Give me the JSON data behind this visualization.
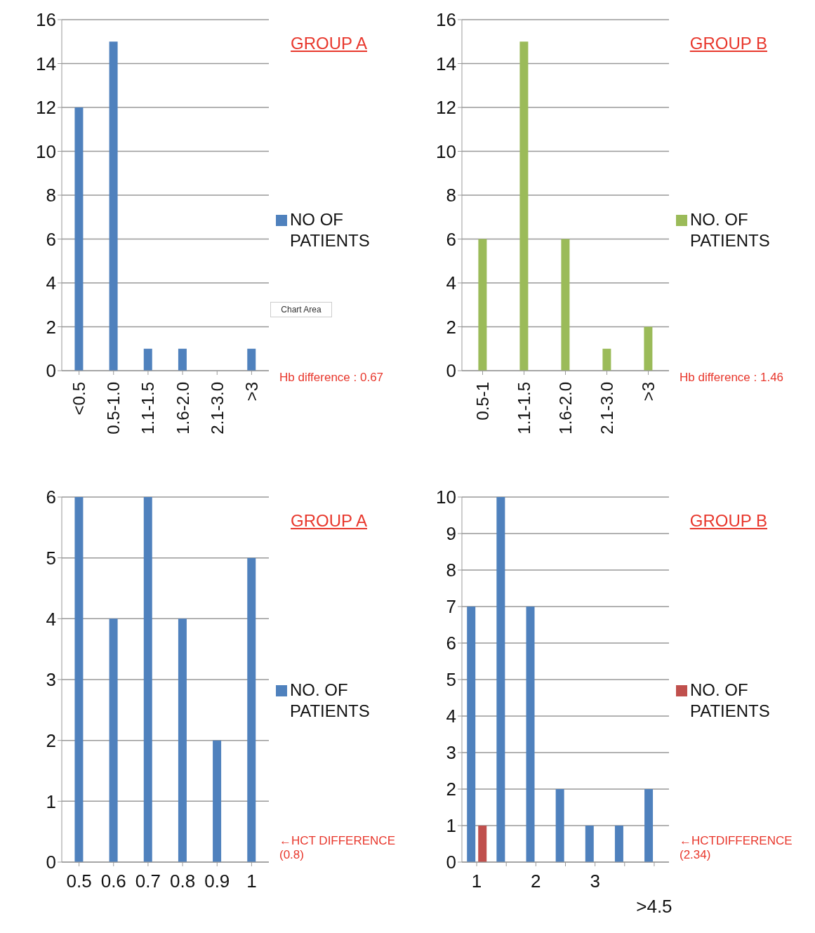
{
  "chart_data": [
    {
      "type": "bar",
      "categories": [
        "<0.5",
        "0.5-1.0",
        "1.1-1.5",
        "1.6-2.0",
        "2.1-3.0",
        ">3"
      ],
      "series": [
        {
          "name": "NO OF PATIENTS",
          "color": "#4f81bd",
          "values": [
            12,
            15,
            1,
            1,
            0,
            1
          ]
        }
      ],
      "ylim": [
        0,
        16
      ],
      "yticks": [
        0,
        2,
        4,
        6,
        8,
        10,
        12,
        14,
        16
      ],
      "grid": "y",
      "legend": "right",
      "annotations": [
        "GROUP A",
        "Chart Area",
        "Hb difference : 0.67"
      ]
    },
    {
      "type": "bar",
      "categories": [
        "0.5-1",
        "1.1-1.5",
        "1.6-2.0",
        "2.1-3.0",
        ">3"
      ],
      "series": [
        {
          "name": "NO. OF PATIENTS",
          "color": "#9bbb59",
          "values": [
            6,
            15,
            6,
            1,
            2
          ]
        }
      ],
      "ylim": [
        0,
        16
      ],
      "yticks": [
        0,
        2,
        4,
        6,
        8,
        10,
        12,
        14,
        16
      ],
      "grid": "y",
      "legend": "right",
      "annotations": [
        "GROUP B",
        "Hb difference : 1.46"
      ]
    },
    {
      "type": "bar",
      "categories": [
        "0.5",
        "0.6",
        "0.7",
        "0.8",
        "0.9",
        "1"
      ],
      "series": [
        {
          "name": "NO. OF PATIENTS",
          "color": "#4f81bd",
          "values": [
            6,
            4,
            6,
            4,
            2,
            5
          ]
        }
      ],
      "ylim": [
        0,
        6
      ],
      "yticks": [
        0,
        1,
        2,
        3,
        4,
        5,
        6
      ],
      "grid": "y",
      "legend": "right",
      "annotations": [
        "GROUP A",
        "←HCT DIFFERENCE (0.8)"
      ]
    },
    {
      "type": "bar",
      "categories": [
        "1",
        null,
        "2",
        null,
        "3",
        null,
        ">4.5"
      ],
      "series": [
        {
          "color": "#4f81bd",
          "values": [
            7,
            10,
            7,
            2,
            1,
            1,
            2
          ]
        },
        {
          "name": "NO. OF PATIENTS",
          "color": "#c0504d",
          "values": [
            1,
            null,
            null,
            null,
            null,
            null,
            null
          ]
        }
      ],
      "ylim": [
        0,
        10
      ],
      "yticks": [
        0,
        1,
        2,
        3,
        4,
        5,
        6,
        7,
        8,
        9,
        10
      ],
      "grid": "y",
      "legend": "right",
      "annotations": [
        "GROUP B",
        "←HCTDIFFERENCE (2.34)"
      ]
    }
  ]
}
